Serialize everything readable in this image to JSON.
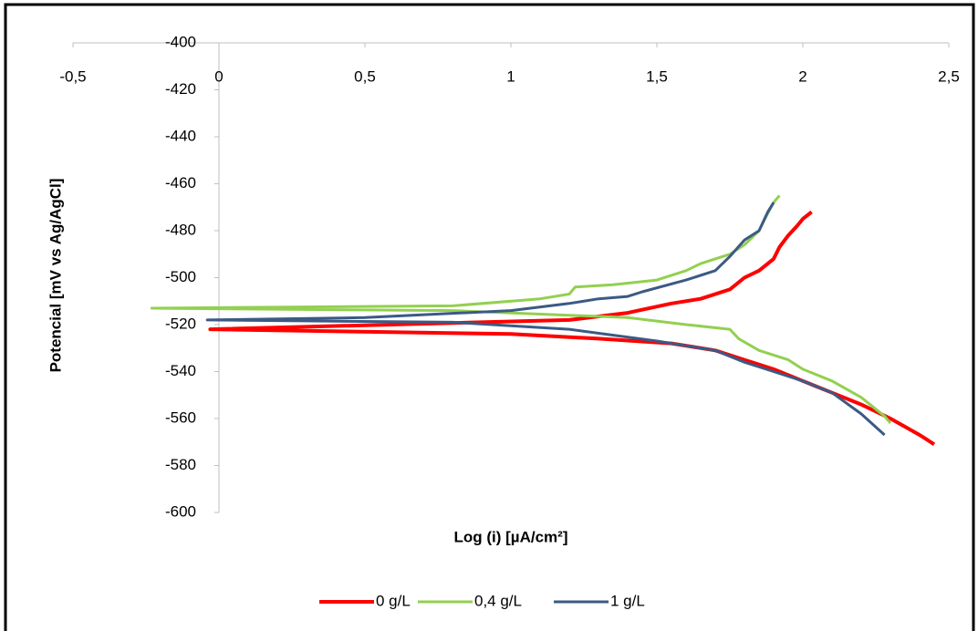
{
  "chart_data": {
    "type": "line",
    "x_label": "Log (i) [µA/cm²]",
    "y_label": "Potencial [mV vs Ag/AgCl]",
    "xlim": [
      -0.5,
      2.5
    ],
    "xticks": [
      {
        "value": -0.5,
        "label": "-0,5"
      },
      0,
      {
        "value": 0.5,
        "label": "0,5"
      },
      1,
      {
        "value": 1.5,
        "label": "1,5"
      },
      2,
      {
        "value": 2.5,
        "label": "2,5"
      }
    ],
    "ylim": [
      -600,
      -400
    ],
    "yticks": [
      -400,
      -420,
      -440,
      -460,
      -480,
      -500,
      -520,
      -540,
      -560,
      -580,
      -600
    ],
    "legend": "bottom",
    "series": [
      {
        "name": "0 g/L",
        "color": "#ff0000",
        "x": [
          2.45,
          2.4,
          2.3,
          2.2,
          2.1,
          2.0,
          1.9,
          1.8,
          1.7,
          1.55,
          1.3,
          1.0,
          -0.03,
          1.2,
          1.4,
          1.55,
          1.65,
          1.75,
          1.8,
          1.85,
          1.9,
          1.92,
          1.95,
          1.98,
          2.0,
          2.03
        ],
        "values": [
          -571,
          -567,
          -560,
          -554,
          -549,
          -544,
          -539,
          -535,
          -531,
          -528,
          -526,
          -524,
          -522,
          -518,
          -515,
          -511,
          -509,
          -505,
          -500,
          -497,
          -492,
          -487,
          -482,
          -478,
          -475,
          -472
        ]
      },
      {
        "name": "0,4 g/L",
        "color": "#92d050",
        "x": [
          2.3,
          2.28,
          2.2,
          2.1,
          2.0,
          1.95,
          1.85,
          1.78,
          1.75,
          1.6,
          1.4,
          0.8,
          -0.23,
          0.8,
          1.1,
          1.2,
          1.22,
          1.35,
          1.5,
          1.6,
          1.65,
          1.75,
          1.8,
          1.85,
          1.87,
          1.9,
          1.92
        ],
        "values": [
          -562,
          -559,
          -551,
          -544,
          -539,
          -535,
          -531,
          -526,
          -522,
          -520,
          -517,
          -514,
          -513,
          -512,
          -509,
          -507,
          -504,
          -503,
          -501,
          -497,
          -494,
          -490,
          -486,
          -480,
          -475,
          -468,
          -465
        ]
      },
      {
        "name": "1 g/L",
        "color": "#3b5a85",
        "x": [
          2.28,
          2.2,
          2.1,
          2.0,
          1.9,
          1.8,
          1.7,
          1.5,
          1.2,
          0.8,
          -0.04,
          0.5,
          1.0,
          1.2,
          1.3,
          1.4,
          1.45,
          1.6,
          1.7,
          1.75,
          1.8,
          1.85,
          1.88,
          1.9
        ],
        "values": [
          -567,
          -558,
          -549,
          -544,
          -540,
          -536,
          -531,
          -527,
          -522,
          -519,
          -518,
          -517,
          -514,
          -511,
          -509,
          -508,
          -506,
          -501,
          -497,
          -491,
          -484,
          -480,
          -472,
          -468
        ]
      }
    ]
  }
}
